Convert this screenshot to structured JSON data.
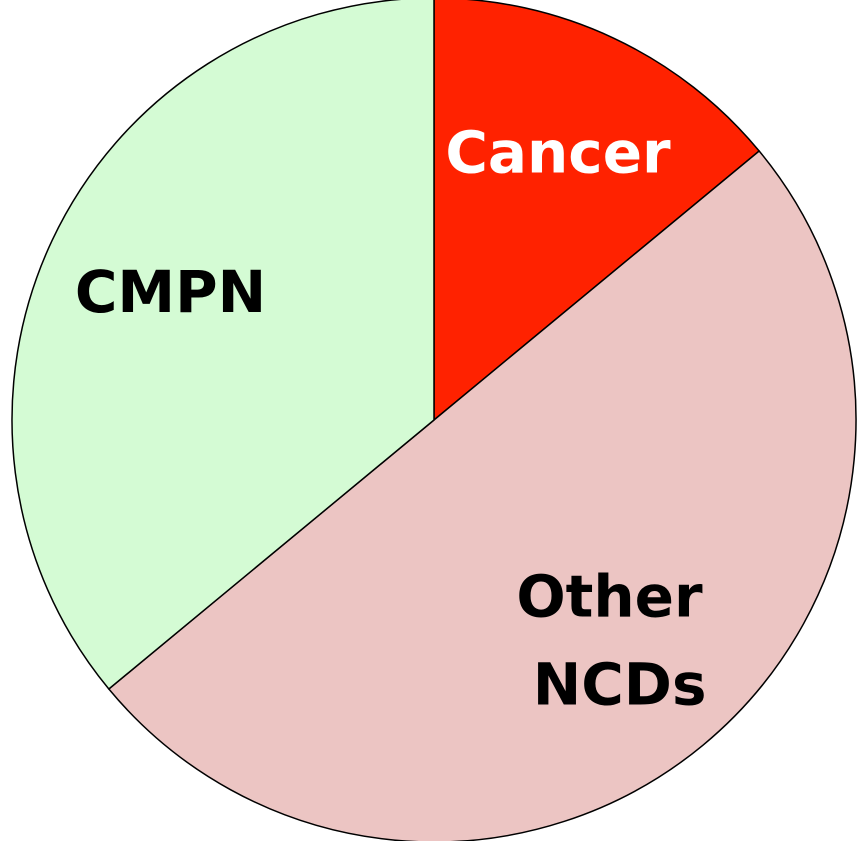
{
  "chart_data": {
    "type": "pie",
    "categories": [
      "Cancer",
      "Other NCDs",
      "CMPN"
    ],
    "values": [
      14,
      50,
      36
    ],
    "colors": [
      "#ff2200",
      "#ecc5c3",
      "#d4fbd4"
    ],
    "label_colors": [
      "#ffffff",
      "#000000",
      "#000000"
    ]
  }
}
